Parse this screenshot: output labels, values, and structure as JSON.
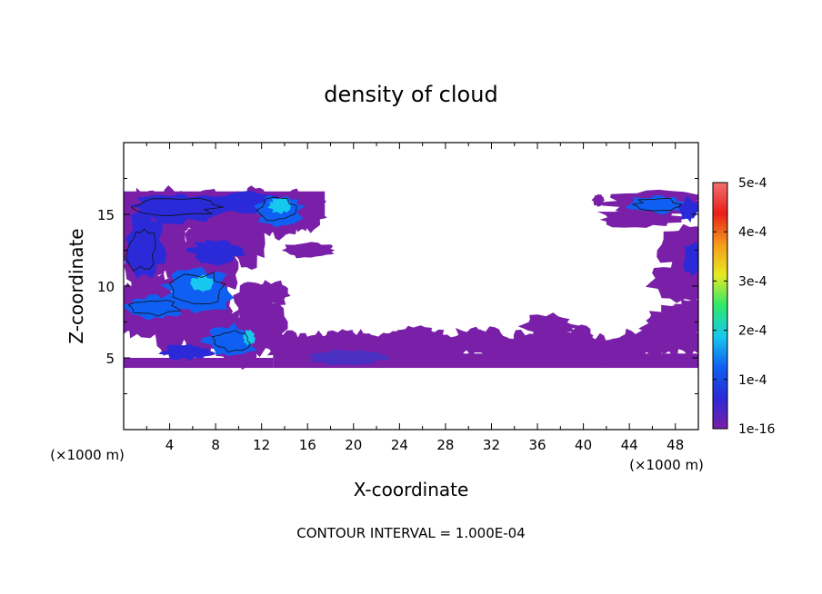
{
  "chart_data": {
    "type": "heatmap",
    "title": "density of cloud",
    "xlabel": "X-coordinate",
    "ylabel": "Z-coordinate",
    "x_unit_label": "(×1000 m)",
    "y_unit_label": "(×1000 m)",
    "xlim": [
      0,
      50
    ],
    "ylim": [
      0,
      20
    ],
    "x_ticks": [
      4,
      8,
      12,
      16,
      20,
      24,
      28,
      32,
      36,
      40,
      44,
      48
    ],
    "y_ticks": [
      5,
      10,
      15
    ],
    "colorbar": {
      "min": 1e-16,
      "max": 0.0005,
      "tick_values": [
        1e-16,
        0.0001,
        0.0002,
        0.0003,
        0.0004,
        0.0005
      ],
      "tick_labels": [
        "1e-16",
        "1e-4",
        "2e-4",
        "3e-4",
        "4e-4",
        "5e-4"
      ],
      "colormap": [
        "#7a1fa8",
        "#2a2ad8",
        "#0f5ff2",
        "#17c8ee",
        "#2ee86a",
        "#e8ea22",
        "#f59a1a",
        "#ea1f1a",
        "#f27070"
      ]
    },
    "contour_interval_text": "CONTOUR INTERVAL = 1.000E-04",
    "regions": [
      {
        "name": "left cloud mass upper",
        "x": [
          0,
          18
        ],
        "z": [
          9.5,
          16.6
        ],
        "level": "1e-16 to 1.4e-4"
      },
      {
        "name": "left cloud mass lower",
        "x": [
          0,
          13
        ],
        "z": [
          4.2,
          8.5
        ],
        "level": "1e-16 to 1.2e-4"
      },
      {
        "name": "low stratiform layer",
        "x": [
          10,
          50
        ],
        "z": [
          4.2,
          7.5
        ],
        "level": "1e-16"
      },
      {
        "name": "right cloud mass",
        "x": [
          41,
          50
        ],
        "z": [
          8,
          16.6
        ],
        "level": "1e-16 to 1e-4"
      }
    ]
  }
}
